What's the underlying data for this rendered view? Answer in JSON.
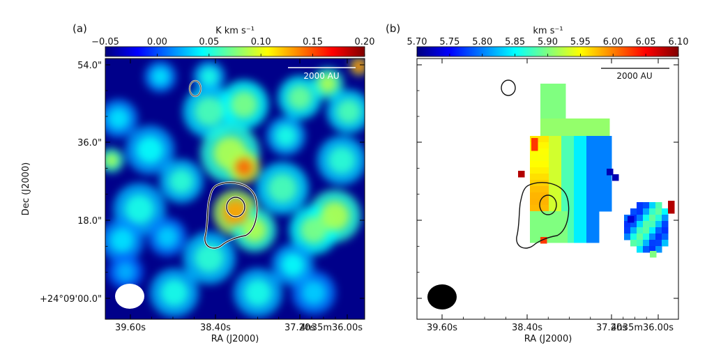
{
  "chart_data": [
    {
      "type": "heatmap",
      "panel_label": "(a)",
      "colorbar": {
        "label": "K km s⁻¹",
        "ticks": [
          "−0.05",
          "0.00",
          "0.05",
          "0.10",
          "0.15",
          "0.20"
        ],
        "values": [
          -0.05,
          0.0,
          0.05,
          0.1,
          0.15,
          0.2
        ],
        "range": [
          -0.05,
          0.2
        ],
        "colormap": "jet"
      },
      "xlabel": "RA (J2000)",
      "ylabel": "Dec (J2000)",
      "x_ticks": [
        "39.60s",
        "38.40s",
        "37.20s",
        "4h35m36.00s"
      ],
      "y_ticks": [
        "54.0\"",
        "36.0\"",
        "18.0\"",
        "+24°09'00.0\""
      ],
      "scalebar": "2000 AU",
      "beam_color": "#ffffff",
      "contour_color": "#111111"
    },
    {
      "type": "heatmap",
      "panel_label": "(b)",
      "colorbar": {
        "label": "km s⁻¹",
        "ticks": [
          "5.70",
          "5.75",
          "5.80",
          "5.85",
          "5.90",
          "5.95",
          "6.00",
          "6.05",
          "6.10"
        ],
        "values": [
          5.7,
          5.75,
          5.8,
          5.85,
          5.9,
          5.95,
          6.0,
          6.05,
          6.1
        ],
        "range": [
          5.7,
          6.1
        ],
        "colormap": "jet"
      },
      "xlabel": "RA (J2000)",
      "x_ticks": [
        "39.60s",
        "38.40s",
        "37.20s",
        "4h35m36.00s"
      ],
      "scalebar": "2000 AU",
      "beam_color": "#000000",
      "contour_color": "#111111"
    }
  ]
}
